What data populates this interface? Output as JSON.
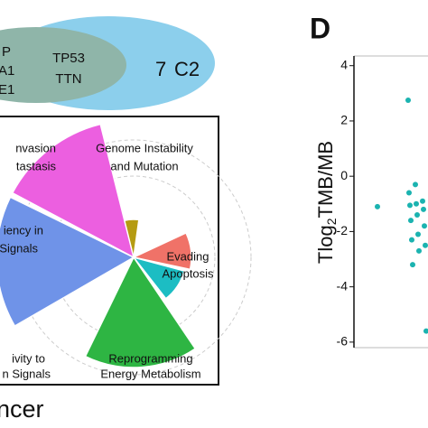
{
  "venn": {
    "outer_left_labels": [
      "P",
      "A1",
      "E1"
    ],
    "inner_labels": [
      "TP53",
      "TTN"
    ],
    "count": "7",
    "group": "C2"
  },
  "rose": {
    "labels": [
      [
        "nvasion",
        "tastasis"
      ],
      [
        "Genome Instability",
        "and Mutation"
      ],
      [
        "Evading",
        "Apoptosis"
      ],
      [
        "iency in",
        "Signals"
      ],
      [
        "ivity to",
        "n Signals"
      ],
      [
        "Reprogramming",
        "Energy Metabolism"
      ]
    ],
    "caption": "ncer"
  },
  "panel_letter": "D",
  "chart_data": {
    "type": "scatter",
    "ylabel": {
      "main": "Tlog",
      "sub": "2",
      "rest": "TMB/MB"
    },
    "values": [
      2.75,
      -1.1,
      -0.3,
      -0.6,
      -0.9,
      -1.0,
      -1.05,
      -1.2,
      -1.4,
      -1.6,
      -1.8,
      -2.1,
      -2.3,
      -2.5,
      -2.7,
      -3.2,
      -5.6
    ],
    "color": "#1bb3b0",
    "ylim": [
      -6.2,
      4.35
    ],
    "yticks": [
      4,
      2,
      0,
      -2,
      -4,
      -6
    ]
  }
}
